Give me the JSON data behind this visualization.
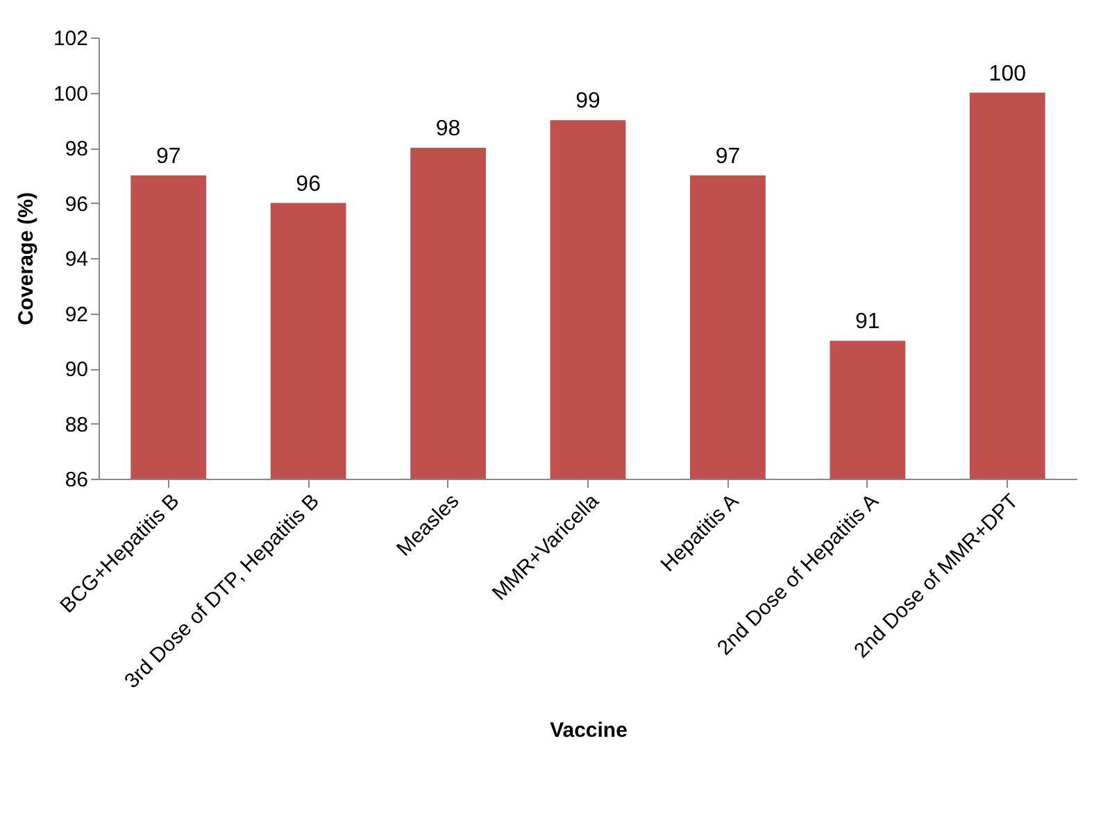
{
  "chart_data": {
    "type": "bar",
    "xlabel": "Vaccine",
    "ylabel": "Coverage (%)",
    "categories": [
      "BCG+Hepatitis B",
      "3rd Dose of DTP, Hepatitis B",
      "Measles",
      "MMR+Varicella",
      "Hepatitis A",
      "2nd Dose of Hepatitis A",
      "2nd Dose of MMR+DPT"
    ],
    "values": [
      97,
      96,
      98,
      99,
      97,
      91,
      100
    ],
    "color": "#c0504d",
    "ylim": [
      86,
      102
    ],
    "yticks": [
      86,
      88,
      90,
      92,
      94,
      96,
      98,
      100,
      102
    ],
    "grid": false,
    "data_labels": true
  }
}
